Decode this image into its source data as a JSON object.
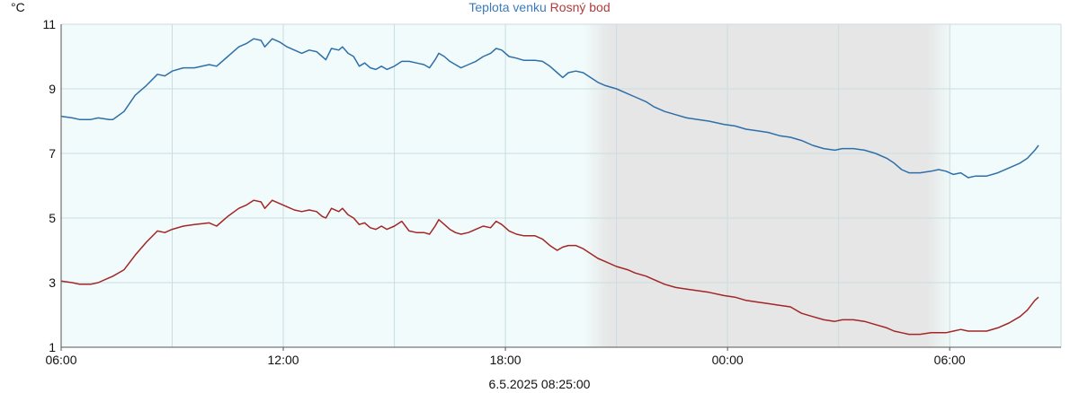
{
  "chart_data": {
    "type": "line",
    "unit_label": "°C",
    "legend_left": "Teplota venku",
    "legend_right": "Rosný bod",
    "timestamp": "6.5.2025 08:25:00",
    "ylim": [
      1,
      11
    ],
    "yticks": [
      "1",
      "3",
      "5",
      "7",
      "9",
      "11"
    ],
    "xrange_hours": [
      0,
      26.4
    ],
    "xticks": [
      {
        "hour": 0,
        "label": "06:00"
      },
      {
        "hour": 6,
        "label": "12:00"
      },
      {
        "hour": 12,
        "label": "18:00"
      },
      {
        "hour": 18,
        "label": "00:00"
      },
      {
        "hour": 24,
        "label": "06:00"
      }
    ],
    "night_shading": {
      "start_hour": 14.1,
      "full_start_hour": 14.8,
      "full_end_hour": 23.4,
      "end_hour": 24.1
    },
    "grid": true,
    "series": [
      {
        "name": "Teplota venku",
        "color": "#2f6fa8",
        "points": [
          [
            0,
            8.15
          ],
          [
            0.3,
            8.1
          ],
          [
            0.5,
            8.05
          ],
          [
            0.8,
            8.05
          ],
          [
            1.0,
            8.1
          ],
          [
            1.3,
            8.05
          ],
          [
            1.4,
            8.05
          ],
          [
            1.7,
            8.3
          ],
          [
            2.0,
            8.8
          ],
          [
            2.3,
            9.1
          ],
          [
            2.6,
            9.45
          ],
          [
            2.8,
            9.4
          ],
          [
            3.0,
            9.55
          ],
          [
            3.3,
            9.65
          ],
          [
            3.6,
            9.65
          ],
          [
            4.0,
            9.75
          ],
          [
            4.2,
            9.7
          ],
          [
            4.5,
            10.0
          ],
          [
            4.8,
            10.3
          ],
          [
            5.0,
            10.4
          ],
          [
            5.2,
            10.55
          ],
          [
            5.4,
            10.5
          ],
          [
            5.5,
            10.3
          ],
          [
            5.7,
            10.55
          ],
          [
            5.9,
            10.45
          ],
          [
            6.1,
            10.3
          ],
          [
            6.3,
            10.2
          ],
          [
            6.5,
            10.1
          ],
          [
            6.7,
            10.2
          ],
          [
            6.9,
            10.15
          ],
          [
            7.05,
            10.0
          ],
          [
            7.15,
            9.9
          ],
          [
            7.3,
            10.25
          ],
          [
            7.5,
            10.2
          ],
          [
            7.6,
            10.3
          ],
          [
            7.75,
            10.1
          ],
          [
            7.9,
            10.0
          ],
          [
            8.05,
            9.7
          ],
          [
            8.2,
            9.8
          ],
          [
            8.35,
            9.65
          ],
          [
            8.5,
            9.6
          ],
          [
            8.65,
            9.7
          ],
          [
            8.8,
            9.6
          ],
          [
            9.0,
            9.7
          ],
          [
            9.2,
            9.85
          ],
          [
            9.4,
            9.85
          ],
          [
            9.6,
            9.8
          ],
          [
            9.8,
            9.75
          ],
          [
            9.95,
            9.65
          ],
          [
            10.1,
            9.9
          ],
          [
            10.2,
            10.1
          ],
          [
            10.35,
            10.0
          ],
          [
            10.5,
            9.85
          ],
          [
            10.65,
            9.75
          ],
          [
            10.8,
            9.65
          ],
          [
            11.0,
            9.75
          ],
          [
            11.2,
            9.85
          ],
          [
            11.4,
            10.0
          ],
          [
            11.6,
            10.1
          ],
          [
            11.75,
            10.25
          ],
          [
            11.9,
            10.2
          ],
          [
            12.1,
            10.0
          ],
          [
            12.3,
            9.95
          ],
          [
            12.5,
            9.88
          ],
          [
            12.8,
            9.88
          ],
          [
            13.0,
            9.85
          ],
          [
            13.2,
            9.7
          ],
          [
            13.4,
            9.5
          ],
          [
            13.55,
            9.35
          ],
          [
            13.7,
            9.5
          ],
          [
            13.9,
            9.55
          ],
          [
            14.1,
            9.5
          ],
          [
            14.3,
            9.35
          ],
          [
            14.5,
            9.2
          ],
          [
            14.7,
            9.1
          ],
          [
            15.0,
            9.0
          ],
          [
            15.3,
            8.85
          ],
          [
            15.5,
            8.75
          ],
          [
            15.8,
            8.6
          ],
          [
            16.0,
            8.45
          ],
          [
            16.3,
            8.3
          ],
          [
            16.6,
            8.2
          ],
          [
            16.9,
            8.1
          ],
          [
            17.2,
            8.05
          ],
          [
            17.5,
            8.0
          ],
          [
            17.9,
            7.9
          ],
          [
            18.2,
            7.85
          ],
          [
            18.5,
            7.75
          ],
          [
            18.8,
            7.7
          ],
          [
            19.1,
            7.65
          ],
          [
            19.4,
            7.55
          ],
          [
            19.7,
            7.5
          ],
          [
            20.0,
            7.4
          ],
          [
            20.3,
            7.25
          ],
          [
            20.6,
            7.15
          ],
          [
            20.9,
            7.1
          ],
          [
            21.1,
            7.15
          ],
          [
            21.4,
            7.15
          ],
          [
            21.7,
            7.1
          ],
          [
            22.0,
            7.0
          ],
          [
            22.3,
            6.85
          ],
          [
            22.5,
            6.7
          ],
          [
            22.7,
            6.5
          ],
          [
            22.9,
            6.4
          ],
          [
            23.2,
            6.4
          ],
          [
            23.5,
            6.45
          ],
          [
            23.7,
            6.5
          ],
          [
            23.9,
            6.45
          ],
          [
            24.1,
            6.35
          ],
          [
            24.3,
            6.4
          ],
          [
            24.5,
            6.25
          ],
          [
            24.7,
            6.3
          ],
          [
            25.0,
            6.3
          ],
          [
            25.3,
            6.4
          ],
          [
            25.6,
            6.55
          ],
          [
            25.9,
            6.7
          ],
          [
            26.1,
            6.85
          ],
          [
            26.3,
            7.1
          ],
          [
            26.4,
            7.25
          ]
        ]
      },
      {
        "name": "Rosný bod",
        "color": "#a32626",
        "points": [
          [
            0,
            3.05
          ],
          [
            0.3,
            3.0
          ],
          [
            0.5,
            2.95
          ],
          [
            0.8,
            2.95
          ],
          [
            1.0,
            3.0
          ],
          [
            1.3,
            3.15
          ],
          [
            1.4,
            3.2
          ],
          [
            1.7,
            3.4
          ],
          [
            2.0,
            3.85
          ],
          [
            2.3,
            4.25
          ],
          [
            2.6,
            4.6
          ],
          [
            2.8,
            4.55
          ],
          [
            3.0,
            4.65
          ],
          [
            3.3,
            4.75
          ],
          [
            3.6,
            4.8
          ],
          [
            4.0,
            4.85
          ],
          [
            4.2,
            4.75
          ],
          [
            4.5,
            5.05
          ],
          [
            4.8,
            5.3
          ],
          [
            5.0,
            5.4
          ],
          [
            5.2,
            5.55
          ],
          [
            5.4,
            5.5
          ],
          [
            5.5,
            5.3
          ],
          [
            5.7,
            5.55
          ],
          [
            5.9,
            5.45
          ],
          [
            6.1,
            5.35
          ],
          [
            6.3,
            5.25
          ],
          [
            6.5,
            5.2
          ],
          [
            6.7,
            5.25
          ],
          [
            6.9,
            5.2
          ],
          [
            7.05,
            5.05
          ],
          [
            7.15,
            5.0
          ],
          [
            7.3,
            5.3
          ],
          [
            7.5,
            5.2
          ],
          [
            7.6,
            5.3
          ],
          [
            7.75,
            5.1
          ],
          [
            7.9,
            5.0
          ],
          [
            8.05,
            4.8
          ],
          [
            8.2,
            4.85
          ],
          [
            8.35,
            4.7
          ],
          [
            8.5,
            4.65
          ],
          [
            8.65,
            4.75
          ],
          [
            8.8,
            4.65
          ],
          [
            9.0,
            4.75
          ],
          [
            9.2,
            4.9
          ],
          [
            9.4,
            4.6
          ],
          [
            9.6,
            4.55
          ],
          [
            9.8,
            4.55
          ],
          [
            9.95,
            4.5
          ],
          [
            10.1,
            4.75
          ],
          [
            10.2,
            4.95
          ],
          [
            10.35,
            4.8
          ],
          [
            10.5,
            4.65
          ],
          [
            10.65,
            4.55
          ],
          [
            10.8,
            4.5
          ],
          [
            11.0,
            4.55
          ],
          [
            11.2,
            4.65
          ],
          [
            11.4,
            4.75
          ],
          [
            11.6,
            4.7
          ],
          [
            11.75,
            4.9
          ],
          [
            11.9,
            4.8
          ],
          [
            12.1,
            4.6
          ],
          [
            12.3,
            4.5
          ],
          [
            12.5,
            4.45
          ],
          [
            12.8,
            4.45
          ],
          [
            13.0,
            4.35
          ],
          [
            13.2,
            4.15
          ],
          [
            13.4,
            4.0
          ],
          [
            13.55,
            4.1
          ],
          [
            13.7,
            4.15
          ],
          [
            13.9,
            4.15
          ],
          [
            14.1,
            4.05
          ],
          [
            14.3,
            3.9
          ],
          [
            14.5,
            3.75
          ],
          [
            14.7,
            3.65
          ],
          [
            15.0,
            3.5
          ],
          [
            15.3,
            3.4
          ],
          [
            15.5,
            3.3
          ],
          [
            15.8,
            3.2
          ],
          [
            16.0,
            3.1
          ],
          [
            16.3,
            2.95
          ],
          [
            16.6,
            2.85
          ],
          [
            16.9,
            2.8
          ],
          [
            17.2,
            2.75
          ],
          [
            17.5,
            2.7
          ],
          [
            17.9,
            2.6
          ],
          [
            18.2,
            2.55
          ],
          [
            18.5,
            2.45
          ],
          [
            18.8,
            2.4
          ],
          [
            19.1,
            2.35
          ],
          [
            19.4,
            2.3
          ],
          [
            19.7,
            2.25
          ],
          [
            20.0,
            2.05
          ],
          [
            20.3,
            1.95
          ],
          [
            20.6,
            1.85
          ],
          [
            20.9,
            1.8
          ],
          [
            21.1,
            1.85
          ],
          [
            21.4,
            1.85
          ],
          [
            21.7,
            1.8
          ],
          [
            22.0,
            1.7
          ],
          [
            22.3,
            1.6
          ],
          [
            22.5,
            1.5
          ],
          [
            22.7,
            1.45
          ],
          [
            22.9,
            1.4
          ],
          [
            23.2,
            1.4
          ],
          [
            23.5,
            1.45
          ],
          [
            23.7,
            1.45
          ],
          [
            23.9,
            1.45
          ],
          [
            24.1,
            1.5
          ],
          [
            24.3,
            1.55
          ],
          [
            24.5,
            1.5
          ],
          [
            24.7,
            1.5
          ],
          [
            25.0,
            1.5
          ],
          [
            25.3,
            1.6
          ],
          [
            25.6,
            1.75
          ],
          [
            25.9,
            1.95
          ],
          [
            26.1,
            2.15
          ],
          [
            26.3,
            2.45
          ],
          [
            26.4,
            2.55
          ]
        ]
      }
    ]
  }
}
